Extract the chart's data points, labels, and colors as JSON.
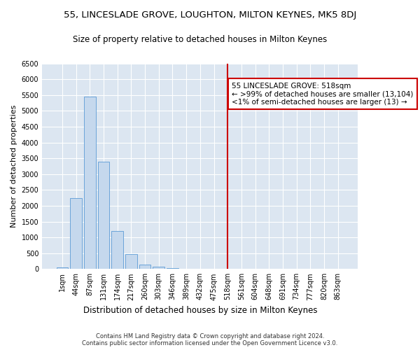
{
  "title": "55, LINCESLADE GROVE, LOUGHTON, MILTON KEYNES, MK5 8DJ",
  "subtitle": "Size of property relative to detached houses in Milton Keynes",
  "xlabel": "Distribution of detached houses by size in Milton Keynes",
  "ylabel": "Number of detached properties",
  "footer_line1": "Contains HM Land Registry data © Crown copyright and database right 2024.",
  "footer_line2": "Contains public sector information licensed under the Open Government Licence v3.0.",
  "bar_labels": [
    "1sqm",
    "44sqm",
    "87sqm",
    "131sqm",
    "174sqm",
    "217sqm",
    "260sqm",
    "303sqm",
    "346sqm",
    "389sqm",
    "432sqm",
    "475sqm",
    "518sqm",
    "561sqm",
    "604sqm",
    "648sqm",
    "691sqm",
    "734sqm",
    "777sqm",
    "820sqm",
    "863sqm"
  ],
  "bar_heights": [
    50,
    2250,
    5450,
    3400,
    1200,
    470,
    130,
    80,
    30,
    10,
    5,
    2,
    0,
    0,
    0,
    0,
    0,
    0,
    0,
    0,
    0
  ],
  "bar_color": "#c5d8ed",
  "bar_edge_color": "#5b9bd5",
  "bg_color": "#dce6f1",
  "fig_bg_color": "#ffffff",
  "grid_color": "#ffffff",
  "vline_x_index": 12,
  "vline_color": "#cc0000",
  "annotation_text": "55 LINCESLADE GROVE: 518sqm\n← >99% of detached houses are smaller (13,104)\n<1% of semi-detached houses are larger (13) →",
  "annotation_box_edge": "#cc0000",
  "annotation_fontsize": 7.5,
  "title_fontsize": 9.5,
  "subtitle_fontsize": 8.5,
  "ylabel_fontsize": 8,
  "xlabel_fontsize": 8.5,
  "tick_fontsize": 7,
  "footer_fontsize": 6,
  "ylim": [
    0,
    6500
  ],
  "yticks": [
    0,
    500,
    1000,
    1500,
    2000,
    2500,
    3000,
    3500,
    4000,
    4500,
    5000,
    5500,
    6000,
    6500
  ]
}
